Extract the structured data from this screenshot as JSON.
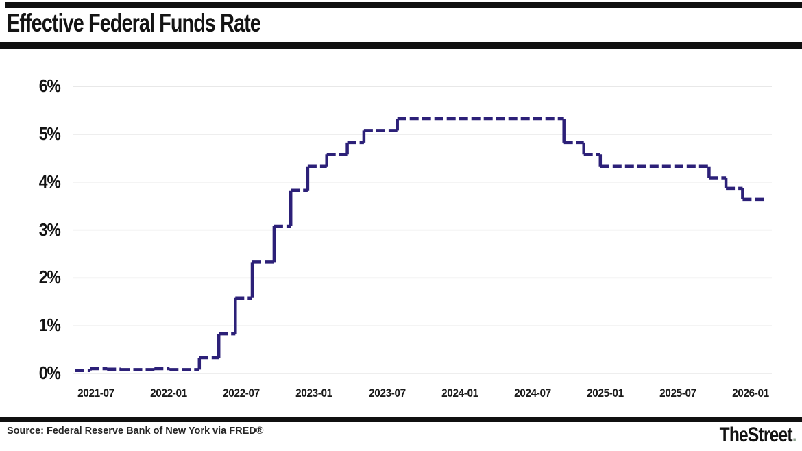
{
  "header": {
    "title": "Effective Federal Funds Rate"
  },
  "footer": {
    "source": "Source: Federal Reserve Bank of New York via FRED®",
    "brand": "TheStreet",
    "brand_dot": "."
  },
  "colors": {
    "line": "#2c2078",
    "grid": "#e8e8e8",
    "rule_bars": "#101010",
    "text": "#141414",
    "brand_dot": "#8fa391"
  },
  "chart_data": {
    "type": "line",
    "subtype": "step",
    "line_style": "dashed",
    "title": "Effective Federal Funds Rate",
    "xlabel": "",
    "ylabel": "",
    "ylim": [
      0,
      6
    ],
    "y_ticks": [
      "0%",
      "1%",
      "2%",
      "3%",
      "4%",
      "5%",
      "6%"
    ],
    "x_ticks": [
      "2021-07",
      "2022-01",
      "2022-07",
      "2023-01",
      "2023-07",
      "2024-01",
      "2024-07",
      "2025-01",
      "2025-07",
      "2026-01"
    ],
    "x_domain": [
      "2021-05-10",
      "2026-02-10"
    ],
    "grid": "horizontal",
    "legend": "none",
    "unit": "percent",
    "series": [
      {
        "name": "Effective Federal Funds Rate",
        "steps": [
          [
            "2021-05-10",
            0.06
          ],
          [
            "2021-06-17",
            0.1
          ],
          [
            "2021-07-29",
            0.09
          ],
          [
            "2021-09-03",
            0.08
          ],
          [
            "2021-11-26",
            0.1
          ],
          [
            "2022-01-03",
            0.08
          ],
          [
            "2022-03-17",
            0.33
          ],
          [
            "2022-05-05",
            0.83
          ],
          [
            "2022-06-16",
            1.58
          ],
          [
            "2022-07-28",
            2.33
          ],
          [
            "2022-09-22",
            3.08
          ],
          [
            "2022-11-03",
            3.83
          ],
          [
            "2022-12-15",
            4.33
          ],
          [
            "2023-02-02",
            4.58
          ],
          [
            "2023-03-23",
            4.83
          ],
          [
            "2023-05-04",
            5.08
          ],
          [
            "2023-07-27",
            5.33
          ],
          [
            "2024-09-19",
            4.83
          ],
          [
            "2024-11-08",
            4.58
          ],
          [
            "2024-12-19",
            4.33
          ],
          [
            "2025-09-18",
            4.09
          ],
          [
            "2025-10-30",
            3.87
          ],
          [
            "2025-12-11",
            3.64
          ]
        ],
        "end_date": "2026-02-10",
        "last_value": 3.64
      }
    ]
  }
}
